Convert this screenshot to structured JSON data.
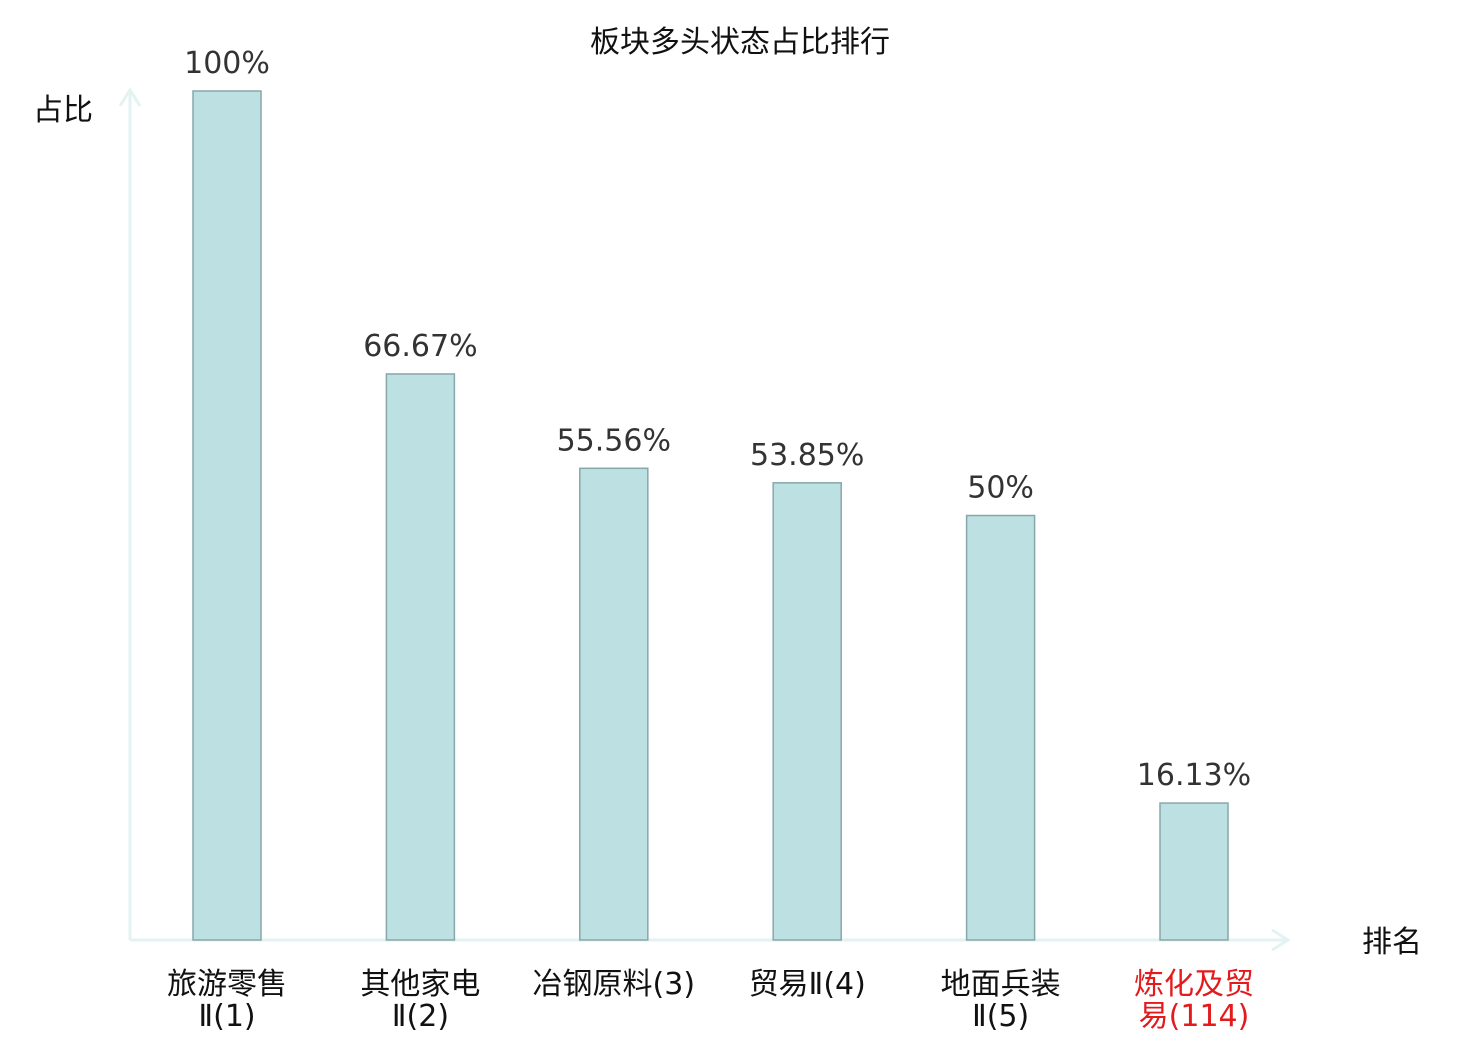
{
  "chart_data": {
    "type": "bar",
    "title": "板块多头状态占比排行",
    "ylabel": "占比",
    "xlabel": "排名",
    "ylim": [
      0,
      100
    ],
    "grid": false,
    "categories": [
      {
        "line1": "旅游零售",
        "line2": "Ⅱ(1)"
      },
      {
        "line1": "其他家电",
        "line2": "Ⅱ(2)"
      },
      {
        "line1": "冶钢原料(3)",
        "line2": ""
      },
      {
        "line1": "贸易Ⅱ(4)",
        "line2": ""
      },
      {
        "line1": "地面兵装",
        "line2": "Ⅱ(5)"
      },
      {
        "line1": "炼化及贸",
        "line2": "易(114)"
      }
    ],
    "values": [
      100,
      66.67,
      55.56,
      53.85,
      50,
      16.13
    ],
    "value_labels": [
      "100%",
      "66.67%",
      "55.56%",
      "53.85%",
      "50%",
      "16.13%"
    ],
    "highlight_index": 5,
    "colors": {
      "bar_fill": "#bde0e3",
      "bar_stroke": "#87a7ab",
      "axis": "#e3f3f1",
      "highlight_text": "#e41a1c",
      "normal_text": "#111111"
    }
  }
}
